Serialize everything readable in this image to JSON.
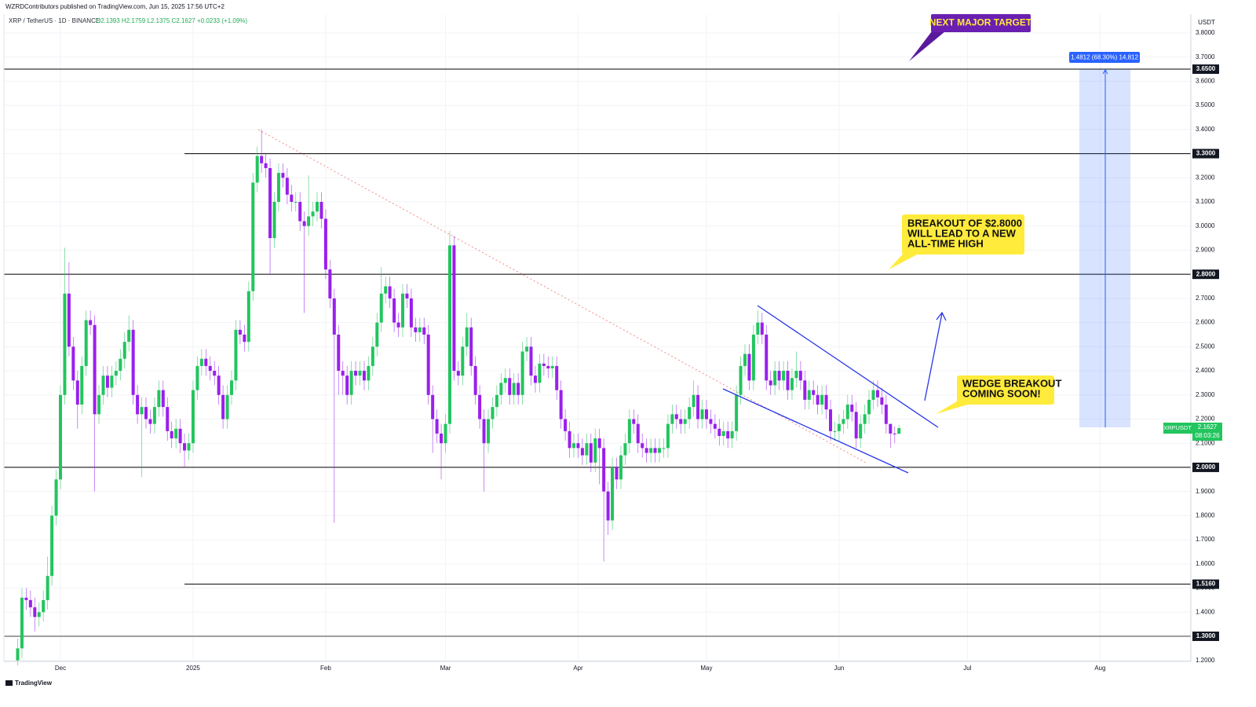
{
  "header": {
    "publisher": "WZRDContributors published on TradingView.com, Jun 15, 2025 17:56 UTC+2",
    "footer": "TradingView"
  },
  "chart_data": {
    "type": "candlestick",
    "symbol": "XRP / TetherUS · 1D · BINANCE",
    "ohlc_text": "O2.1393 H2.1759 L2.1375 C2.1627 +0.0233 (+1.09%)",
    "currency": "USDT",
    "ticker": "XRPUSDT",
    "countdown": "08:03:26",
    "up_color": "#22c55e",
    "down_color": "#9a1fec",
    "grid": true,
    "categories": [
      null,
      null,
      null,
      null,
      null,
      null,
      null,
      null,
      null,
      null,
      "Dec",
      null,
      null,
      null,
      null,
      null,
      null,
      null,
      null,
      null,
      null,
      null,
      null,
      null,
      null,
      null,
      null,
      null,
      null,
      null,
      null,
      null,
      null,
      null,
      null,
      null,
      null,
      null,
      null,
      null,
      null,
      "2025",
      null,
      null,
      null,
      null,
      null,
      null,
      null,
      null,
      null,
      null,
      null,
      null,
      null,
      null,
      null,
      null,
      null,
      null,
      null,
      null,
      null,
      null,
      null,
      null,
      null,
      null,
      null,
      null,
      null,
      null,
      "Feb",
      null,
      null,
      null,
      null,
      null,
      null,
      null,
      null,
      null,
      null,
      null,
      null,
      null,
      null,
      null,
      null,
      null,
      null,
      null,
      null,
      null,
      null,
      null,
      null,
      null,
      null,
      null,
      "Mar",
      null,
      null,
      null,
      null,
      null,
      null,
      null,
      null,
      null,
      null,
      null,
      null,
      null,
      null,
      null,
      null,
      null,
      null,
      null,
      null,
      null,
      null,
      null,
      null,
      null,
      null,
      null,
      null,
      null,
      null,
      "Apr",
      null,
      null,
      null,
      null,
      null,
      null,
      null,
      null,
      null,
      null,
      null,
      null,
      null,
      null,
      null,
      null,
      null,
      null,
      null,
      null,
      null,
      null,
      null,
      null,
      null,
      null,
      null,
      null,
      null,
      "May",
      null,
      null,
      null,
      null,
      null,
      null,
      null,
      null,
      null,
      null,
      null,
      null,
      null,
      null,
      null,
      null,
      null,
      null,
      null,
      null,
      null,
      null,
      null,
      null,
      null,
      null,
      null,
      null,
      null,
      null,
      "Jun",
      null,
      null,
      null,
      null,
      null,
      null,
      null,
      null,
      null,
      null,
      null,
      null,
      null,
      null,
      null,
      null,
      null,
      null,
      null,
      null,
      null,
      null,
      null,
      null,
      null,
      null,
      null,
      null,
      null,
      "Jul",
      null,
      null,
      null,
      null,
      null,
      null,
      null,
      null,
      null,
      null,
      null,
      null,
      null,
      null,
      null,
      null,
      null,
      null,
      null,
      null,
      null,
      null,
      null,
      null,
      null,
      null,
      null,
      null,
      null,
      null,
      "Aug",
      null,
      null,
      null,
      null,
      null,
      null,
      null,
      null,
      null,
      null,
      null,
      null,
      null,
      null,
      null,
      null,
      null,
      null,
      null
    ],
    "open": [
      1.2,
      1.25,
      1.46,
      1.45,
      1.42,
      1.38,
      1.4,
      1.45,
      1.55,
      1.8,
      1.95,
      2.3,
      2.72,
      2.5,
      2.36,
      2.26,
      2.42,
      2.61,
      2.59,
      2.22,
      2.3,
      2.38,
      2.33,
      2.38,
      2.4,
      2.45,
      2.52,
      2.57,
      2.3,
      2.22,
      2.25,
      2.2,
      2.18,
      2.25,
      2.32,
      2.25,
      2.15,
      2.12,
      2.16,
      2.1,
      2.07,
      2.1,
      2.32,
      2.42,
      2.45,
      2.42,
      2.4,
      2.38,
      2.3,
      2.2,
      2.3,
      2.36,
      2.57,
      2.55,
      2.52,
      2.73,
      3.18,
      3.29,
      3.26,
      3.24,
      2.95,
      3.1,
      3.22,
      3.2,
      3.13,
      3.1,
      3.1,
      3.02,
      3.0,
      3.04,
      3.06,
      3.1,
      3.03,
      2.82,
      2.7,
      2.55,
      2.4,
      2.38,
      2.3,
      2.4,
      2.38,
      2.4,
      2.36,
      2.42,
      2.5,
      2.6,
      2.72,
      2.75,
      2.7,
      2.6,
      2.58,
      2.72,
      2.7,
      2.58,
      2.56,
      2.58,
      2.55,
      2.3,
      2.2,
      2.14,
      2.1,
      2.18,
      2.92,
      2.4,
      2.38,
      2.5,
      2.58,
      2.42,
      2.3,
      2.2,
      2.1,
      2.2,
      2.25,
      2.3,
      2.35,
      2.37,
      2.3,
      2.35,
      2.3,
      2.48,
      2.5,
      2.38,
      2.35,
      2.43,
      2.42,
      2.41,
      2.42,
      2.32,
      2.2,
      2.15,
      2.08,
      2.1,
      2.08,
      2.05,
      2.1,
      2.02,
      2.12,
      2.08,
      1.9,
      1.78,
      2.0,
      1.95,
      2.05,
      2.1,
      2.2,
      2.18,
      2.1,
      2.08,
      2.06,
      2.08,
      2.06,
      2.08,
      2.08,
      2.18,
      2.22,
      2.2,
      2.18,
      2.2,
      2.25,
      2.3,
      2.2,
      2.24,
      2.2,
      2.18,
      2.16,
      2.13,
      2.15,
      2.12,
      2.15,
      2.3,
      2.42,
      2.47,
      2.36,
      2.55,
      2.6,
      2.55,
      2.36,
      2.34,
      2.4,
      2.36,
      2.4,
      2.32,
      2.37,
      2.4,
      2.36,
      2.28,
      2.32,
      2.3,
      2.26,
      2.3,
      2.24,
      2.15,
      2.15,
      2.18,
      2.2,
      2.26,
      2.23,
      2.12,
      2.18,
      2.22,
      2.28,
      2.32,
      2.29,
      2.26,
      2.18,
      2.14,
      2.1393,
      null,
      null,
      null,
      null,
      null,
      null,
      null,
      null,
      null,
      null,
      null,
      null,
      null,
      null,
      null,
      null,
      null,
      null,
      null,
      null,
      null,
      null,
      null,
      null,
      null,
      null,
      null,
      null,
      null,
      null,
      null,
      null,
      null,
      null,
      null,
      null,
      null,
      null,
      null,
      null,
      null,
      null,
      null,
      null,
      null,
      null,
      null,
      null,
      null,
      null,
      null,
      null,
      null,
      null,
      null,
      null,
      null,
      null,
      null,
      null,
      null,
      null,
      null,
      null,
      null,
      null
    ],
    "high": [
      1.29,
      1.5,
      1.5,
      1.49,
      1.46,
      1.44,
      1.49,
      1.63,
      1.84,
      1.99,
      2.34,
      2.91,
      2.85,
      2.54,
      2.4,
      2.46,
      2.65,
      2.65,
      2.63,
      2.34,
      2.42,
      2.42,
      2.42,
      2.44,
      2.49,
      2.56,
      2.63,
      2.61,
      2.34,
      2.29,
      2.29,
      2.24,
      2.29,
      2.36,
      2.36,
      2.29,
      2.19,
      2.2,
      2.2,
      2.14,
      2.14,
      2.36,
      2.46,
      2.49,
      2.49,
      2.46,
      2.44,
      2.42,
      2.34,
      2.34,
      2.4,
      2.61,
      2.61,
      2.59,
      2.77,
      3.22,
      3.33,
      3.4,
      3.3,
      3.28,
      3.14,
      3.26,
      3.26,
      3.24,
      3.17,
      3.14,
      3.14,
      3.06,
      3.21,
      3.1,
      3.14,
      3.14,
      3.07,
      2.86,
      2.74,
      2.59,
      2.44,
      2.42,
      2.44,
      2.44,
      2.44,
      2.44,
      2.46,
      2.54,
      2.64,
      2.83,
      2.79,
      2.79,
      2.74,
      2.64,
      2.76,
      2.76,
      2.74,
      2.62,
      2.62,
      2.62,
      2.59,
      2.34,
      2.24,
      2.18,
      2.22,
      2.98,
      2.96,
      2.44,
      2.54,
      2.64,
      2.62,
      2.46,
      2.34,
      2.24,
      2.24,
      2.29,
      2.34,
      2.39,
      2.41,
      2.41,
      2.39,
      2.39,
      2.52,
      2.54,
      2.54,
      2.42,
      2.47,
      2.47,
      2.46,
      2.46,
      2.46,
      2.36,
      2.24,
      2.19,
      2.14,
      2.14,
      2.12,
      2.14,
      2.14,
      2.16,
      2.16,
      2.12,
      1.94,
      2.04,
      2.04,
      2.09,
      2.14,
      2.24,
      2.24,
      2.22,
      2.14,
      2.12,
      2.12,
      2.12,
      2.12,
      2.12,
      2.22,
      2.26,
      2.26,
      2.24,
      2.24,
      2.29,
      2.36,
      2.34,
      2.28,
      2.28,
      2.24,
      2.22,
      2.2,
      2.19,
      2.19,
      2.19,
      2.34,
      2.46,
      2.51,
      2.51,
      2.59,
      2.65,
      2.64,
      2.59,
      2.4,
      2.44,
      2.44,
      2.44,
      2.44,
      2.41,
      2.48,
      2.44,
      2.4,
      2.36,
      2.36,
      2.34,
      2.34,
      2.34,
      2.28,
      2.19,
      2.22,
      2.24,
      2.3,
      2.3,
      2.27,
      2.22,
      2.26,
      2.32,
      2.36,
      2.36,
      2.33,
      2.3,
      2.18,
      2.17,
      2.1759,
      null,
      null,
      null,
      null,
      null,
      null,
      null,
      null,
      null,
      null,
      null,
      null,
      null,
      null,
      null,
      null,
      null,
      null,
      null,
      null,
      null,
      null,
      null,
      null,
      null,
      null,
      null,
      null,
      null,
      null,
      null,
      null,
      null,
      null,
      null,
      null,
      null,
      null,
      null,
      null,
      null,
      null,
      null,
      null,
      null,
      null,
      null,
      null,
      null,
      null,
      null,
      null,
      null,
      null,
      null,
      null,
      null,
      null,
      null,
      null,
      null,
      null,
      null,
      null,
      null,
      null
    ],
    "low": [
      1.18,
      1.21,
      1.41,
      1.38,
      1.32,
      1.34,
      1.36,
      1.41,
      1.51,
      1.76,
      1.91,
      2.26,
      2.46,
      2.32,
      2.16,
      2.22,
      2.38,
      2.55,
      1.9,
      2.18,
      2.26,
      2.29,
      2.29,
      2.34,
      2.36,
      2.41,
      2.48,
      2.26,
      2.18,
      1.96,
      2.16,
      2.14,
      2.14,
      2.21,
      2.21,
      2.11,
      2.08,
      2.08,
      2.06,
      2.0,
      2.03,
      2.06,
      2.28,
      2.38,
      2.38,
      2.36,
      2.34,
      2.26,
      2.16,
      2.16,
      2.26,
      2.32,
      2.51,
      2.48,
      2.48,
      2.69,
      3.14,
      3.22,
      3.2,
      2.8,
      2.91,
      3.06,
      3.16,
      3.09,
      3.06,
      3.06,
      2.98,
      2.64,
      2.96,
      3.0,
      3.02,
      2.99,
      2.78,
      2.66,
      1.77,
      2.3,
      2.3,
      2.26,
      2.26,
      2.34,
      2.34,
      2.32,
      2.32,
      2.38,
      2.46,
      2.56,
      2.68,
      2.66,
      2.56,
      2.54,
      2.54,
      2.66,
      2.54,
      2.52,
      2.52,
      2.51,
      2.26,
      2.06,
      2.1,
      1.95,
      2.06,
      2.14,
      2.36,
      2.34,
      2.34,
      2.46,
      2.38,
      2.26,
      2.16,
      1.9,
      2.06,
      2.16,
      2.21,
      2.26,
      2.31,
      2.26,
      2.26,
      2.26,
      2.26,
      2.44,
      2.34,
      2.31,
      2.31,
      2.38,
      2.37,
      2.37,
      2.28,
      2.16,
      2.11,
      2.04,
      2.04,
      2.04,
      2.01,
      2.01,
      1.98,
      1.98,
      1.93,
      1.61,
      1.72,
      1.74,
      1.91,
      1.91,
      2.01,
      2.06,
      2.14,
      2.06,
      2.04,
      2.02,
      2.02,
      2.02,
      2.02,
      2.04,
      2.04,
      2.14,
      2.16,
      2.14,
      2.14,
      2.16,
      2.21,
      2.16,
      2.16,
      2.16,
      2.14,
      2.12,
      2.09,
      2.09,
      2.08,
      2.08,
      2.11,
      2.26,
      2.38,
      2.32,
      2.32,
      2.51,
      2.51,
      2.32,
      2.3,
      2.3,
      2.32,
      2.32,
      2.28,
      2.28,
      2.33,
      2.32,
      2.24,
      2.24,
      2.26,
      2.22,
      2.22,
      2.2,
      2.11,
      2.11,
      2.11,
      2.14,
      2.16,
      2.19,
      2.08,
      2.08,
      2.14,
      2.18,
      2.24,
      2.25,
      2.22,
      2.14,
      2.08,
      2.1,
      2.1375,
      null,
      null,
      null,
      null,
      null,
      null,
      null,
      null,
      null,
      null,
      null,
      null,
      null,
      null,
      null,
      null,
      null,
      null,
      null,
      null,
      null,
      null,
      null,
      null,
      null,
      null,
      null,
      null,
      null,
      null,
      null,
      null,
      null,
      null,
      null,
      null,
      null,
      null,
      null,
      null,
      null,
      null,
      null,
      null,
      null,
      null,
      null,
      null,
      null,
      null,
      null,
      null,
      null,
      null,
      null,
      null,
      null,
      null,
      null,
      null,
      null,
      null,
      null,
      null,
      null,
      null
    ],
    "close": [
      1.25,
      1.46,
      1.45,
      1.42,
      1.38,
      1.4,
      1.45,
      1.55,
      1.8,
      1.95,
      2.3,
      2.72,
      2.5,
      2.36,
      2.26,
      2.42,
      2.61,
      2.59,
      2.22,
      2.3,
      2.38,
      2.33,
      2.38,
      2.4,
      2.45,
      2.52,
      2.57,
      2.3,
      2.22,
      2.25,
      2.2,
      2.18,
      2.25,
      2.32,
      2.25,
      2.15,
      2.12,
      2.16,
      2.1,
      2.07,
      2.1,
      2.32,
      2.42,
      2.45,
      2.42,
      2.4,
      2.38,
      2.3,
      2.2,
      2.3,
      2.36,
      2.57,
      2.55,
      2.52,
      2.73,
      3.18,
      3.29,
      3.26,
      3.24,
      2.95,
      3.1,
      3.22,
      3.2,
      3.13,
      3.1,
      3.1,
      3.02,
      3.0,
      3.04,
      3.06,
      3.1,
      3.03,
      2.82,
      2.7,
      2.55,
      2.4,
      2.38,
      2.3,
      2.4,
      2.38,
      2.4,
      2.36,
      2.42,
      2.5,
      2.6,
      2.72,
      2.75,
      2.7,
      2.6,
      2.58,
      2.72,
      2.7,
      2.58,
      2.56,
      2.58,
      2.55,
      2.3,
      2.2,
      2.14,
      2.1,
      2.18,
      2.92,
      2.4,
      2.38,
      2.5,
      2.58,
      2.42,
      2.3,
      2.2,
      2.1,
      2.2,
      2.25,
      2.3,
      2.35,
      2.37,
      2.3,
      2.35,
      2.3,
      2.48,
      2.5,
      2.38,
      2.35,
      2.43,
      2.42,
      2.41,
      2.42,
      2.32,
      2.2,
      2.15,
      2.08,
      2.1,
      2.08,
      2.05,
      2.1,
      2.02,
      2.12,
      2.08,
      1.9,
      1.78,
      2.0,
      1.95,
      2.05,
      2.1,
      2.2,
      2.18,
      2.1,
      2.08,
      2.06,
      2.08,
      2.06,
      2.08,
      2.08,
      2.18,
      2.22,
      2.2,
      2.18,
      2.2,
      2.25,
      2.3,
      2.2,
      2.24,
      2.2,
      2.18,
      2.16,
      2.13,
      2.15,
      2.12,
      2.15,
      2.3,
      2.42,
      2.47,
      2.36,
      2.55,
      2.6,
      2.55,
      2.36,
      2.34,
      2.4,
      2.36,
      2.4,
      2.32,
      2.37,
      2.4,
      2.36,
      2.28,
      2.32,
      2.3,
      2.26,
      2.3,
      2.24,
      2.15,
      2.15,
      2.18,
      2.2,
      2.26,
      2.23,
      2.12,
      2.18,
      2.22,
      2.28,
      2.32,
      2.29,
      2.26,
      2.18,
      2.14,
      2.1393,
      2.1627,
      null,
      null,
      null,
      null,
      null,
      null,
      null,
      null,
      null,
      null,
      null,
      null,
      null,
      null,
      null,
      null,
      null,
      null,
      null,
      null,
      null,
      null,
      null,
      null,
      null,
      null,
      null,
      null,
      null,
      null,
      null,
      null,
      null,
      null,
      null,
      null,
      null,
      null,
      null,
      null,
      null,
      null,
      null,
      null,
      null,
      null,
      null,
      null,
      null,
      null,
      null,
      null,
      null,
      null,
      null,
      null,
      null,
      null,
      null,
      null,
      null,
      null,
      null,
      null,
      null,
      null
    ],
    "ylim": [
      1.2,
      3.85
    ],
    "yticks": [
      {
        "value": 1.2,
        "label": "1.2000"
      },
      {
        "value": 1.3,
        "label": "1.3000"
      },
      {
        "value": 1.4,
        "label": "1.4000"
      },
      {
        "value": 1.5,
        "label": "1.5000"
      },
      {
        "value": 1.6,
        "label": "1.6000"
      },
      {
        "value": 1.7,
        "label": "1.7000"
      },
      {
        "value": 1.8,
        "label": "1.8000"
      },
      {
        "value": 1.9,
        "label": "1.9000"
      },
      {
        "value": 2.0,
        "label": "2.0000"
      },
      {
        "value": 2.1,
        "label": "2.1000"
      },
      {
        "value": 2.2,
        "label": "2.2000"
      },
      {
        "value": 2.3,
        "label": "2.3000"
      },
      {
        "value": 2.4,
        "label": "2.4000"
      },
      {
        "value": 2.5,
        "label": "2.5000"
      },
      {
        "value": 2.6,
        "label": "2.6000"
      },
      {
        "value": 2.7,
        "label": "2.7000"
      },
      {
        "value": 2.8,
        "label": "2.8000"
      },
      {
        "value": 2.9,
        "label": "2.9000"
      },
      {
        "value": 3.0,
        "label": "3.0000"
      },
      {
        "value": 3.1,
        "label": "3.1000"
      },
      {
        "value": 3.2,
        "label": "3.2000"
      },
      {
        "value": 3.3,
        "label": "3.3000"
      },
      {
        "value": 3.4,
        "label": "3.4000"
      },
      {
        "value": 3.5,
        "label": "3.5000"
      },
      {
        "value": 3.6,
        "label": "3.6000"
      },
      {
        "value": 3.7,
        "label": "3.7000"
      },
      {
        "value": 3.8,
        "label": "3.8000"
      }
    ],
    "levels": [
      {
        "value": 3.65,
        "label": "3.6500"
      },
      {
        "value": 3.3,
        "label": "3.3000"
      },
      {
        "value": 2.8,
        "label": "2.8000"
      },
      {
        "value": 2.0,
        "label": "2.0000"
      },
      {
        "value": 1.516,
        "label": "1.5160"
      },
      {
        "value": 1.3,
        "label": "1.3000"
      }
    ],
    "projection_label": "1.4812 (68.30%) 14,812",
    "annotations": [
      {
        "lines": [
          "NEXT MAJOR TARGET"
        ]
      },
      {
        "lines": [
          "BREAKOUT OF $2.8000",
          "WILL LEAD TO A NEW",
          "ALL-TIME HIGH"
        ]
      },
      {
        "lines": [
          "WEDGE BREAKOUT",
          "COMING SOON!"
        ]
      }
    ]
  }
}
